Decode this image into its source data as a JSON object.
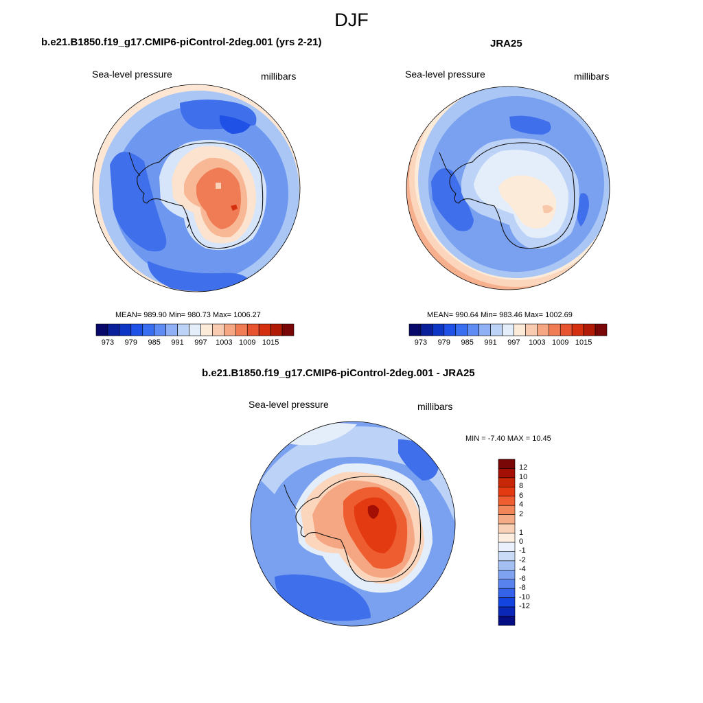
{
  "figure": {
    "title": "DJF",
    "panels": [
      {
        "title": "b.e21.B1850.f19_g17.CMIP6-piControl-2deg.001 (yrs 2-21)",
        "left_label": "Sea-level pressure",
        "right_label": "millibars",
        "stats": "MEAN= 989.90  Min= 980.73  Max= 1006.27"
      },
      {
        "title": "JRA25",
        "left_label": "Sea-level pressure",
        "right_label": "millibars",
        "stats": "MEAN= 990.64  Min= 983.46  Max= 1002.69"
      },
      {
        "title": "b.e21.B1850.f19_g17.CMIP6-piControl-2deg.001 - JRA25",
        "left_label": "Sea-level pressure",
        "right_label": "millibars",
        "stats": "MIN =  -7.40 MAX =  10.45"
      }
    ]
  },
  "colorbar_horizontal": {
    "colors": [
      "#08086b",
      "#0a1f9a",
      "#0d36c4",
      "#1f51e6",
      "#3a6ef0",
      "#5f8cf2",
      "#8fb0f4",
      "#bcd2f7",
      "#e4eefa",
      "#fdebd9",
      "#f9cbb0",
      "#f5a683",
      "#f07c55",
      "#e8542f",
      "#d4300f",
      "#b01a06",
      "#7a0707"
    ],
    "labels": [
      "973",
      "979",
      "985",
      "991",
      "997",
      "1003",
      "1009",
      "1015"
    ]
  },
  "colorbar_vertical": {
    "colors": [
      "#7a0707",
      "#a30f05",
      "#c72607",
      "#e33a12",
      "#ee5d2f",
      "#f28658",
      "#f5ab86",
      "#f9d1b6",
      "#fdeee0",
      "#eaf1fc",
      "#c9dbf6",
      "#a4c0f2",
      "#7ea2f0",
      "#5882ee",
      "#3463ea",
      "#1444e0",
      "#0a27b8",
      "#050d82"
    ],
    "labels": [
      "12",
      "10",
      "8",
      "6",
      "4",
      "2",
      "1",
      "0",
      "-1",
      "-2",
      "-4",
      "-6",
      "-8",
      "-10",
      "-12"
    ]
  },
  "chart_data": [
    {
      "type": "heatmap",
      "title": "b.e21.B1850.f19_g17.CMIP6-piControl-2deg.001 (yrs 2-21)",
      "variable": "Sea-level pressure",
      "units": "millibars",
      "projection": "south polar stereographic",
      "mean": 989.9,
      "min": 980.73,
      "max": 1006.27,
      "levels": [
        973,
        976,
        979,
        982,
        985,
        988,
        991,
        994,
        997,
        1000,
        1003,
        1006,
        1009,
        1012,
        1015
      ]
    },
    {
      "type": "heatmap",
      "title": "JRA25",
      "variable": "Sea-level pressure",
      "units": "millibars",
      "projection": "south polar stereographic",
      "mean": 990.64,
      "min": 983.46,
      "max": 1002.69,
      "levels": [
        973,
        976,
        979,
        982,
        985,
        988,
        991,
        994,
        997,
        1000,
        1003,
        1006,
        1009,
        1012,
        1015
      ]
    },
    {
      "type": "heatmap",
      "title": "b.e21.B1850.f19_g17.CMIP6-piControl-2deg.001 - JRA25",
      "variable": "Sea-level pressure",
      "units": "millibars",
      "projection": "south polar stereographic",
      "min": -7.4,
      "max": 10.45,
      "levels": [
        -12,
        -10,
        -8,
        -6,
        -4,
        -2,
        -1,
        0,
        1,
        2,
        4,
        6,
        8,
        10,
        12
      ]
    }
  ]
}
